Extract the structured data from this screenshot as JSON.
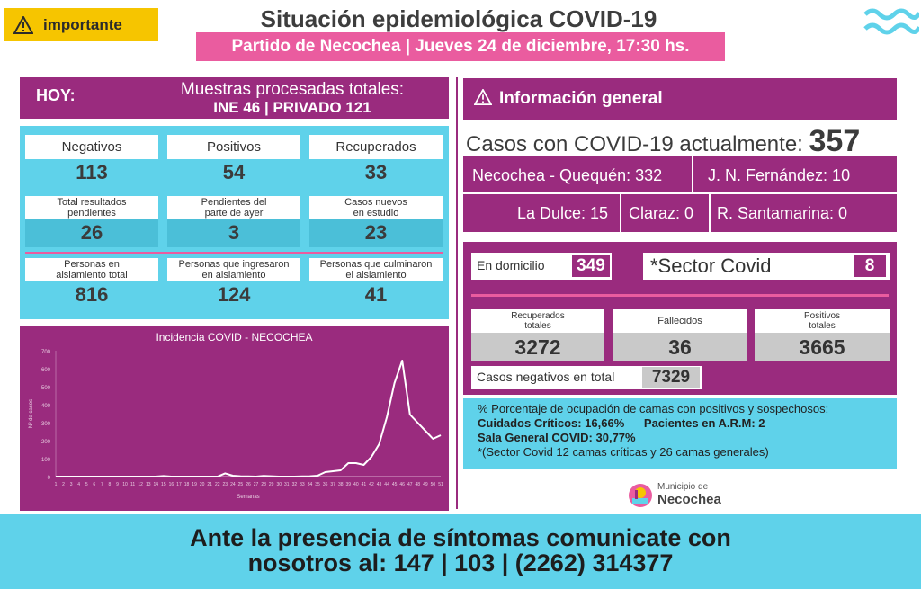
{
  "badge": {
    "label": "importante"
  },
  "header": {
    "title": "Situación epidemiológica COVID-19",
    "subtitle": "Partido de Necochea | Jueves 24 de diciembre, 17:30 hs."
  },
  "hoy": {
    "label": "HOY:",
    "muestras_title": "Muestras procesadas totales:",
    "muestras_values": "INE 46 | PRIVADO 121"
  },
  "stats": {
    "negativos": {
      "label": "Negativos",
      "value": "113"
    },
    "positivos": {
      "label": "Positivos",
      "value": "54"
    },
    "recuperados": {
      "label": "Recuperados",
      "value": "33"
    },
    "pendientes_total": {
      "label_line1": "Total resultados",
      "label_line2": "pendientes",
      "value": "26"
    },
    "pendientes_ayer": {
      "label_line1": "Pendientes del",
      "label_line2": "parte de ayer",
      "value": "3"
    },
    "casos_nuevos": {
      "label_line1": "Casos nuevos",
      "label_line2": "en estudio",
      "value": "23"
    },
    "aislamiento_total": {
      "label_line1": "Personas en",
      "label_line2": "aislamiento total",
      "value": "816"
    },
    "ingresaron": {
      "label_line1": "Personas que ingresaron",
      "label_line2": "en aislamiento",
      "value": "124"
    },
    "culminaron": {
      "label_line1": "Personas que culminaron",
      "label_line2": "el aislamiento",
      "value": "41"
    }
  },
  "chart_data": {
    "type": "line",
    "title": "Incidencia COVID - NECOCHEA",
    "xlabel": "Semanas",
    "ylabel": "Nº de casos",
    "ylim": [
      0,
      700
    ],
    "yticks": [
      0,
      100,
      200,
      300,
      400,
      500,
      600,
      700
    ],
    "x": [
      1,
      2,
      3,
      4,
      5,
      6,
      7,
      8,
      9,
      10,
      11,
      12,
      13,
      14,
      15,
      16,
      17,
      18,
      19,
      20,
      21,
      22,
      23,
      24,
      25,
      26,
      27,
      28,
      29,
      30,
      31,
      32,
      33,
      34,
      35,
      36,
      37,
      38,
      39,
      40,
      41,
      42,
      43,
      44,
      45,
      46,
      47,
      48,
      49,
      50,
      51
    ],
    "series": [
      {
        "values": [
          0,
          0,
          0,
          0,
          0,
          0,
          0,
          0,
          0,
          0,
          0,
          0,
          0,
          0,
          3,
          0,
          0,
          0,
          0,
          0,
          0,
          0,
          18,
          5,
          2,
          1,
          0,
          4,
          2,
          0,
          0,
          0,
          1,
          2,
          5,
          25,
          30,
          35,
          75,
          75,
          65,
          110,
          180,
          330,
          520,
          645,
          345,
          300,
          255,
          210,
          230
        ]
      }
    ],
    "line_color": "#ffffff",
    "grid": false
  },
  "info": {
    "header": "Información general",
    "casos_label": "Casos con COVID-19 actualmente:",
    "casos_value": "357",
    "localidades": {
      "necochea": "Necochea - Quequén: 332",
      "jnf": "J. N. Fernández: 10",
      "la_dulce": "La Dulce: 15",
      "claraz": "Claraz: 0",
      "santamarina": "R. Santamarina: 0"
    },
    "domicilio_label": "En domicilio",
    "domicilio_value": "349",
    "sector_label": "*Sector Covid",
    "sector_value": "8",
    "recuperados_totales": {
      "label_line1": "Recuperados",
      "label_line2": "totales",
      "value": "3272"
    },
    "fallecidos": {
      "label": "Fallecidos",
      "value": "36"
    },
    "positivos_totales": {
      "label_line1": "Positivos",
      "label_line2": "totales",
      "value": "3665"
    },
    "negativos_total_label": "Casos negativos en total",
    "negativos_total_value": "7329"
  },
  "camas": {
    "line1": "% Porcentaje de ocupación de camas con positivos y sospechosos:",
    "line2a": "Cuidados Críticos: 16,66%",
    "line2b": "Pacientes en A.R.M: 2",
    "line3": "Sala General COVID: 30,77%",
    "line4": "*(Sector Covid 12 camas críticas y 26 camas generales)"
  },
  "logo": {
    "line1": "Municipio de",
    "line2": "Necochea"
  },
  "footer": {
    "line1": "Ante la presencia de síntomas comunicate con",
    "line2": "nosotros al: 147 | 103 | (2262) 314377"
  },
  "colors": {
    "purple": "#9a2b7e",
    "pink": "#ea5c9f",
    "cyan": "#5fd2ea",
    "yellow": "#f6c500"
  }
}
